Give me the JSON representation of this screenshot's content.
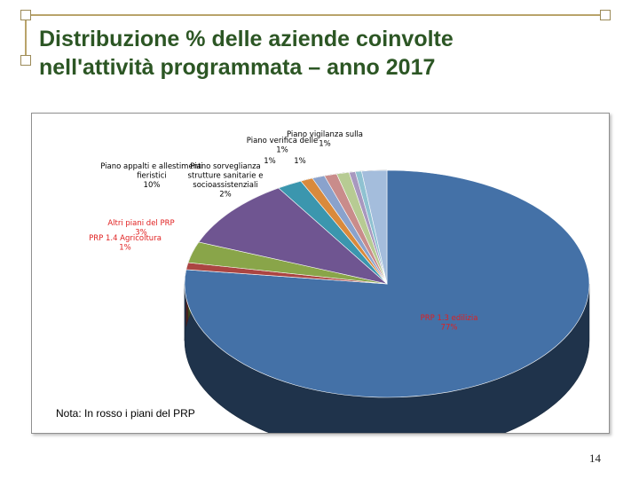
{
  "slide": {
    "title": "Distribuzione % delle aziende coinvolte\nnell'attività programmata – anno 2017",
    "note": "Nota: In rosso i piani del PRP",
    "page_number": "14"
  },
  "chart_data": {
    "type": "pie",
    "three_d": true,
    "title": "",
    "slices": [
      {
        "label": "PRP 1.3 edilizia",
        "value": 77,
        "percent_label": "77%",
        "color": "#4471a7",
        "prp": true
      },
      {
        "label": "PRP 1.4 Agricoltura",
        "value": 1,
        "percent_label": "1%",
        "color": "#ab4542",
        "prp": true
      },
      {
        "label": "Altri piani del PRP",
        "value": 3,
        "percent_label": "3%",
        "color": "#89a549",
        "prp": true
      },
      {
        "label": "Piano appalti e allestimenti fieristici",
        "value": 10,
        "percent_label": "10%",
        "color": "#6f5591",
        "prp": false
      },
      {
        "label": "Piano sorveglianza strutture sanitarie e socioassistenziali",
        "value": 2,
        "percent_label": "2%",
        "color": "#3b96ae",
        "prp": false
      },
      {
        "label": "",
        "value": 1,
        "percent_label": "1%",
        "color": "#d98a3c",
        "prp": false
      },
      {
        "label": "Piano verifica delle",
        "value": 1,
        "percent_label": "1%",
        "color": "#8aa2cc",
        "prp": false
      },
      {
        "label": "",
        "value": 1,
        "percent_label": "1%",
        "color": "#c98c8b",
        "prp": false
      },
      {
        "label": "Piano vigilanza sulla",
        "value": 1,
        "percent_label": "1%",
        "color": "#b7cb93",
        "prp": false
      },
      {
        "label": "",
        "value": 0.5,
        "percent_label": "",
        "color": "#a898bf",
        "prp": false
      },
      {
        "label": "",
        "value": 0.5,
        "percent_label": "",
        "color": "#8fc2d1",
        "prp": false
      },
      {
        "label": "",
        "value": 2,
        "percent_label": "",
        "color": "#a4bddc",
        "prp": false
      }
    ],
    "legend": "none",
    "label_color_prp": "#e02020",
    "label_color_other": "#000000"
  }
}
